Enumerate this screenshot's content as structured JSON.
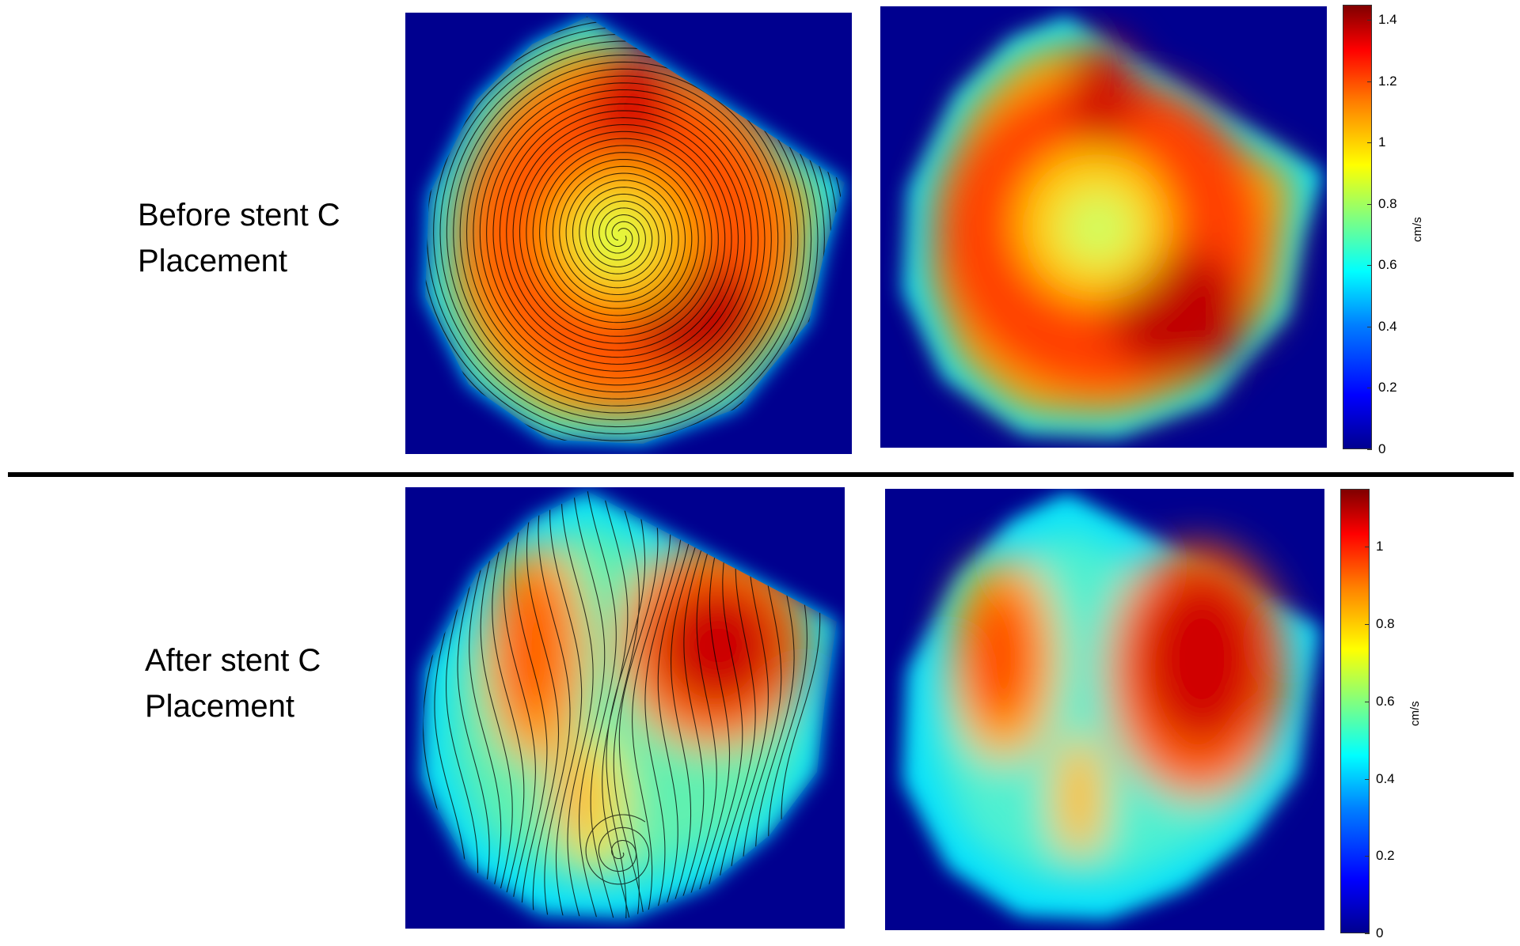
{
  "labels": {
    "before_line1": "Before stent C",
    "before_line2": "Placement",
    "after_line1": "After stent C",
    "after_line2": "Placement"
  },
  "colors": {
    "background": "#00008f",
    "colormap": "jet",
    "streamline": "#000000"
  },
  "chart_data": [
    {
      "type": "heatmap",
      "panel": "before-streamlines",
      "title": "",
      "xlabel": "",
      "ylabel": "",
      "overlay": "streamlines",
      "flow_pattern": "single clockwise vortex",
      "colorbar": {
        "unit": "cm/s",
        "ticks": [
          "0",
          "0.2",
          "0.4",
          "0.6",
          "0.8",
          "1",
          "1.2",
          "1.4"
        ],
        "range": [
          0,
          1.45
        ]
      },
      "peak_value": 1.4,
      "core_value": 0.85
    },
    {
      "type": "heatmap",
      "panel": "before-velocity",
      "title": "",
      "xlabel": "",
      "ylabel": "",
      "colorbar": {
        "unit": "cm/s",
        "ticks": [
          "0",
          "0.2",
          "0.4",
          "0.6",
          "0.8",
          "1",
          "1.2",
          "1.4"
        ],
        "range": [
          0,
          1.45
        ]
      },
      "peak_value": 1.4,
      "core_value": 0.85
    },
    {
      "type": "heatmap",
      "panel": "after-streamlines",
      "title": "",
      "xlabel": "",
      "ylabel": "",
      "overlay": "streamlines",
      "flow_pattern": "disturbed flow with small vortex near bottom",
      "colorbar": {
        "unit": "cm/s",
        "ticks": [
          "0",
          "0.2",
          "0.4",
          "0.6",
          "0.8",
          "1"
        ],
        "range": [
          0,
          1.15
        ]
      },
      "peak_value": 1.1,
      "core_value": 0.5
    },
    {
      "type": "heatmap",
      "panel": "after-velocity",
      "title": "",
      "xlabel": "",
      "ylabel": "",
      "colorbar": {
        "unit": "cm/s",
        "ticks": [
          "0",
          "0.2",
          "0.4",
          "0.6",
          "0.8",
          "1"
        ],
        "range": [
          0,
          1.15
        ]
      },
      "peak_value": 1.1,
      "core_value": 0.5
    }
  ]
}
